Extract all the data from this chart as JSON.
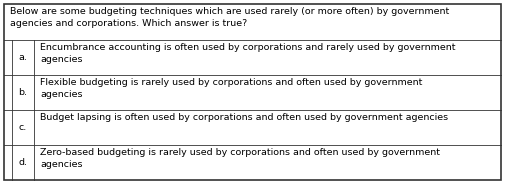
{
  "title": "Below are some budgeting techniques which are used rarely (or more often) by government\nagencies and corporations. Which answer is true?",
  "options": [
    {
      "label": "a.",
      "text": "Encumbrance accounting is often used by corporations and rarely used by government\nagencies"
    },
    {
      "label": "b.",
      "text": "Flexible budgeting is rarely used by corporations and often used by government\nagencies"
    },
    {
      "label": "c.",
      "text": "Budget lapsing is often used by corporations and often used by government agencies"
    },
    {
      "label": "d.",
      "text": "Zero-based budgeting is rarely used by corporations and often used by government\nagencies"
    }
  ],
  "bg_color": "#ffffff",
  "border_color": "#333333",
  "text_color": "#000000",
  "font_size": 6.8,
  "title_font_size": 6.8,
  "outer_lw": 1.2,
  "inner_lw": 0.6,
  "fig_width": 5.05,
  "fig_height": 1.84,
  "dpi": 100
}
